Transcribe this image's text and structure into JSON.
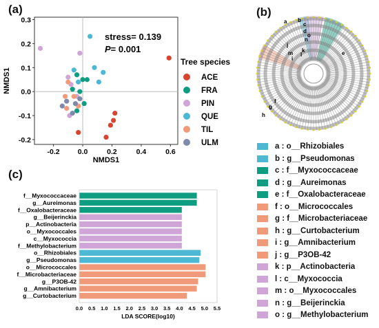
{
  "panels": {
    "a": "(a)",
    "b": "(b)",
    "c": "(c)"
  },
  "colors": {
    "teal": "#0f9d82",
    "lightblue": "#4db8d3",
    "pink": "#cfa5d8",
    "salmon": "#f19a7a"
  },
  "chart_data": [
    {
      "type": "scatter",
      "xlabel": "NMDS1",
      "ylabel": "NMDS1",
      "xlim": [
        -0.33,
        0.65
      ],
      "ylim": [
        -0.22,
        0.31
      ],
      "xticks": [
        "-0.2",
        "0.0",
        "0.2",
        "0.4",
        "0.6"
      ],
      "yticks": [
        "0.3",
        "0.2",
        "0.1",
        "0.0",
        "-0.1",
        "-0.2"
      ],
      "annotations": {
        "stress": "stress= 0.139",
        "p_value": "= 0.001",
        "p_symbol": "P"
      },
      "legend_title": "Tree species",
      "series": [
        {
          "name": "ACE",
          "color": "#d9442e",
          "points": [
            [
              0.59,
              0.14
            ],
            [
              0.22,
              -0.09
            ],
            [
              0.21,
              -0.12
            ],
            [
              0.19,
              -0.14
            ],
            [
              0.16,
              -0.19
            ],
            [
              -0.03,
              -0.17
            ]
          ]
        },
        {
          "name": "FRA",
          "color": "#0f9d82",
          "points": [
            [
              -0.04,
              0.07
            ],
            [
              0.0,
              0.05
            ],
            [
              0.03,
              0.05
            ],
            [
              -0.07,
              0.01
            ],
            [
              -0.02,
              0.0
            ],
            [
              0.01,
              -0.05
            ],
            [
              -0.04,
              -0.08
            ]
          ]
        },
        {
          "name": "PIN",
          "color": "#cfa5d8",
          "points": [
            [
              -0.29,
              0.18
            ],
            [
              -0.02,
              0.16
            ],
            [
              -0.1,
              0.06
            ],
            [
              -0.08,
              0.03
            ],
            [
              -0.04,
              -0.02
            ],
            [
              -0.09,
              -0.1
            ]
          ]
        },
        {
          "name": "QUE",
          "color": "#4db8d3",
          "points": [
            [
              0.05,
              0.23
            ],
            [
              -0.06,
              0.09
            ],
            [
              0.08,
              0.1
            ],
            [
              0.14,
              0.08
            ],
            [
              0.11,
              0.04
            ],
            [
              -0.03,
              0.04
            ]
          ]
        },
        {
          "name": "TIL",
          "color": "#f19a7a",
          "points": [
            [
              -0.1,
              0.04
            ],
            [
              -0.12,
              -0.02
            ],
            [
              -0.06,
              -0.02
            ],
            [
              -0.11,
              -0.07
            ],
            [
              -0.03,
              -0.06
            ]
          ]
        },
        {
          "name": "ULM",
          "color": "#7e8aa9",
          "points": [
            [
              -0.14,
              -0.06
            ],
            [
              -0.11,
              -0.04
            ],
            [
              -0.02,
              -0.03
            ],
            [
              -0.05,
              -0.05
            ],
            [
              -0.07,
              -0.09
            ]
          ]
        }
      ]
    },
    {
      "type": "bar",
      "orientation": "horizontal",
      "xlabel": "LDA SCORE(log10)",
      "xlim": [
        0,
        5.5
      ],
      "xticks": [
        "0.0",
        "0.5",
        "1.0",
        "1.5",
        "2.0",
        "2.5",
        "3.0",
        "3.5",
        "4.0",
        "4.5",
        "5.0",
        "5.5"
      ],
      "categories": [
        "f__Myxococcaceae",
        "g__Aureimonas",
        "f__Oxalobacteraceae",
        "g__Beijerinckia",
        "p__Actinobacteria",
        "o__Myxococcales",
        "c__Myxococcia",
        "f__Methylobacterium",
        "o__Rhizobiales",
        "g__Pseudomonas",
        "o__Micrococcales",
        "f__Microbacteriaceae",
        "g__P3OB-42",
        "g__Amnibacterium",
        "g__Curtobacterium"
      ],
      "values": [
        4.7,
        4.7,
        4.1,
        4.1,
        4.1,
        4.1,
        4.1,
        4.1,
        4.85,
        4.8,
        5.05,
        5.05,
        4.75,
        4.7,
        4.3
      ],
      "colors": [
        "#0f9d82",
        "#0f9d82",
        "#0f9d82",
        "#cfa5d8",
        "#cfa5d8",
        "#cfa5d8",
        "#cfa5d8",
        "#cfa5d8",
        "#4db8d3",
        "#4db8d3",
        "#f19a7a",
        "#f19a7a",
        "#f19a7a",
        "#f19a7a",
        "#f19a7a"
      ]
    }
  ],
  "cladogram": {
    "labels": [
      "a",
      "b",
      "c",
      "d",
      "e",
      "f",
      "g",
      "h",
      "i",
      "j",
      "k",
      "l",
      "m",
      "n",
      "o"
    ]
  },
  "taxa_legend": [
    {
      "text": "a : o__Rhizobiales",
      "color": "#4db8d3"
    },
    {
      "text": "b : g__Pseudomonas",
      "color": "#4db8d3"
    },
    {
      "text": "c : f__Myxococcaceae",
      "color": "#0f9d82"
    },
    {
      "text": "d : g__Aureimonas",
      "color": "#0f9d82"
    },
    {
      "text": "e : f__Oxalobacteraceae",
      "color": "#0f9d82"
    },
    {
      "text": "f : o__Micrococcales",
      "color": "#f19a7a"
    },
    {
      "text": "g : f__Microbacteriaceae",
      "color": "#f19a7a"
    },
    {
      "text": "h : g__Curtobacterium",
      "color": "#f19a7a"
    },
    {
      "text": "i : g__Amnibacterium",
      "color": "#f19a7a"
    },
    {
      "text": "j : g__P3OB-42",
      "color": "#f19a7a"
    },
    {
      "text": "k : p__Actinobacteria",
      "color": "#cfa5d8"
    },
    {
      "text": "l : c__Myxococcia",
      "color": "#cfa5d8"
    },
    {
      "text": "m : o__Myxococcales",
      "color": "#cfa5d8"
    },
    {
      "text": "n : g__Beijerinckia",
      "color": "#cfa5d8"
    },
    {
      "text": "o : g__Methylobacterium",
      "color": "#cfa5d8"
    }
  ]
}
